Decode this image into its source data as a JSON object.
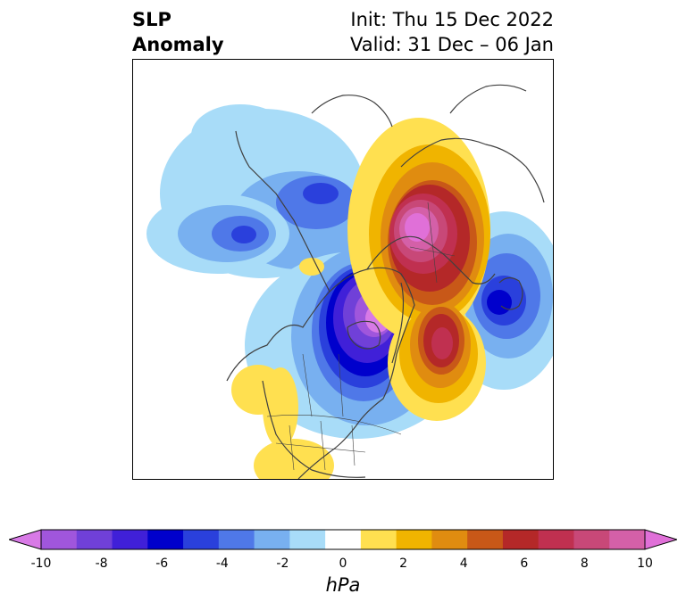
{
  "title": {
    "variable_line1": "SLP",
    "variable_line2": "Anomaly",
    "init_label": "Init: Thu 15 Dec 2022",
    "valid_label": "Valid: 31 Dec – 06 Jan"
  },
  "colorbar": {
    "levels": [
      -10,
      -9,
      -8,
      -7,
      -6,
      -5,
      -4,
      -3,
      -2,
      -1,
      1,
      2,
      3,
      4,
      5,
      6,
      7,
      8,
      9,
      10
    ],
    "colors": [
      "#d87ae6",
      "#a056dc",
      "#7040d8",
      "#4020d8",
      "#0000cc",
      "#2a40dc",
      "#4f78e8",
      "#78b0f0",
      "#a8dcf8",
      "#ffffff",
      "#ffe050",
      "#f0b400",
      "#e08c10",
      "#c85818",
      "#b42828",
      "#c03050",
      "#c84878",
      "#d460a8",
      "#e070d8"
    ],
    "tick_values": [
      "-10",
      "-8",
      "-6",
      "-4",
      "-2",
      "0",
      "2",
      "4",
      "6",
      "8",
      "10"
    ],
    "units": "hPa"
  },
  "colors": {
    "negative_strong": "#0000cc",
    "positive_strong": "#b42828",
    "coastline": "#404040"
  }
}
